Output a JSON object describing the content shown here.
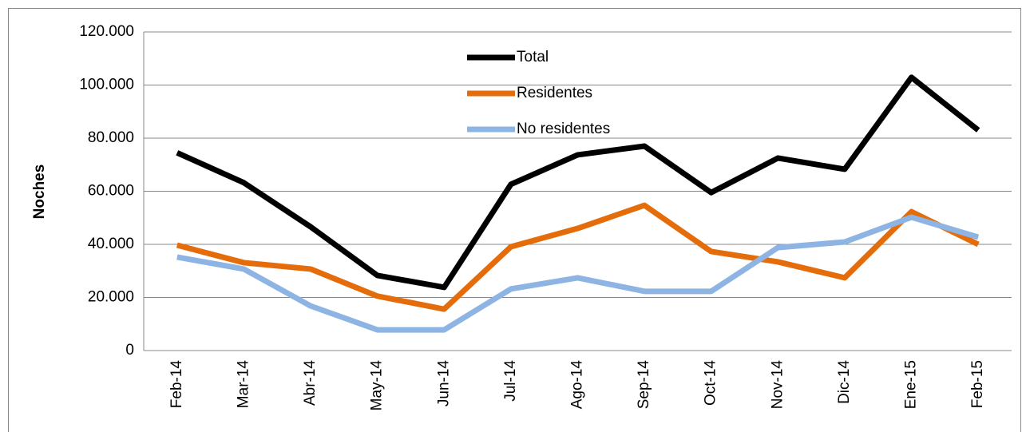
{
  "chart_data": {
    "type": "line",
    "y_label": "Noches",
    "categories": [
      "Feb-14",
      "Mar-14",
      "Abr-14",
      "May-14",
      "Jun-14",
      "Jul-14",
      "Ago-14",
      "Sep-14",
      "Oct-14",
      "Nov-14",
      "Dic-14",
      "Ene-15",
      "Feb-15"
    ],
    "series": [
      {
        "name": "Total",
        "color": "#000000",
        "values": [
          74500,
          63200,
          46600,
          28300,
          23800,
          62600,
          73700,
          77000,
          59500,
          72500,
          68300,
          102900,
          83000
        ]
      },
      {
        "name": "Residentes",
        "color": "#e46c0a",
        "values": [
          39700,
          33100,
          30700,
          20500,
          15600,
          39100,
          46000,
          54700,
          37300,
          33400,
          27400,
          52300,
          40000
        ]
      },
      {
        "name": "No residentes",
        "color": "#8eb4e3",
        "values": [
          35200,
          30700,
          16800,
          7800,
          7800,
          23200,
          27400,
          22300,
          22300,
          38800,
          40900,
          50200,
          42700
        ]
      }
    ],
    "ylim": [
      0,
      120000
    ],
    "yticks": [
      0,
      {
        "value": 20000,
        "label": "20.000"
      },
      {
        "value": 40000,
        "label": "40.000"
      },
      {
        "value": 60000,
        "label": "60.000"
      },
      {
        "value": 80000,
        "label": "80.000"
      },
      {
        "value": 100000,
        "label": "100.000"
      },
      {
        "value": 120000,
        "label": "120.000"
      }
    ],
    "grid": true
  }
}
